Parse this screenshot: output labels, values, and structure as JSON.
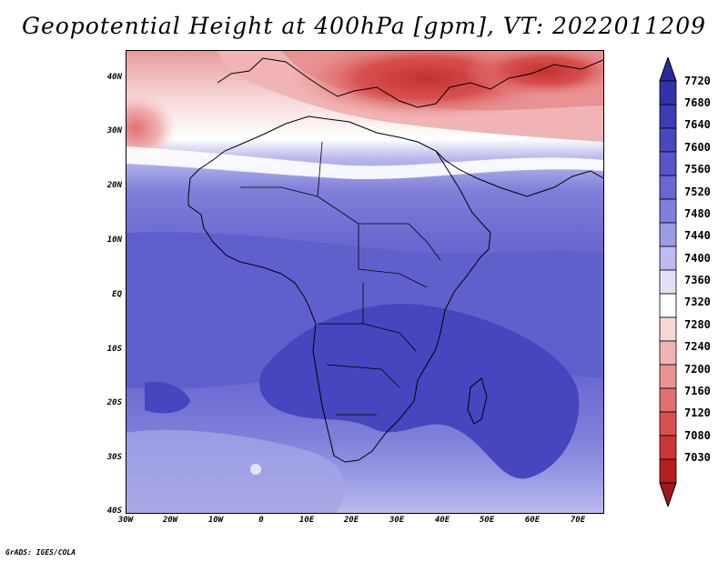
{
  "title": "Geopotential Height at 400hPa [gpm], VT: 2022011209",
  "credit": "GrADS: IGES/COLA",
  "lat_ticks": [
    "40N",
    "30N",
    "20N",
    "10N",
    "EQ",
    "10S",
    "20S",
    "30S",
    "40S"
  ],
  "lon_ticks": [
    "30W",
    "20W",
    "10W",
    "0",
    "10E",
    "20E",
    "30E",
    "40E",
    "50E",
    "60E",
    "70E"
  ],
  "colorbar": {
    "levels": [
      "7720",
      "7680",
      "7640",
      "7600",
      "7560",
      "7520",
      "7480",
      "7440",
      "7400",
      "7360",
      "7320",
      "7280",
      "7240",
      "7200",
      "7160",
      "7120",
      "7080",
      "7030"
    ],
    "colors": [
      "#2a2a9e",
      "#3232a8",
      "#3c3cb4",
      "#4848be",
      "#5656c8",
      "#6868d0",
      "#8080da",
      "#9c9ce4",
      "#bcbcee",
      "#e0e0f6",
      "#ffffff",
      "#f6d6d6",
      "#f0b4b4",
      "#e89292",
      "#e07070",
      "#d85050",
      "#cc3636",
      "#b51f1f",
      "#a01818"
    ]
  }
}
